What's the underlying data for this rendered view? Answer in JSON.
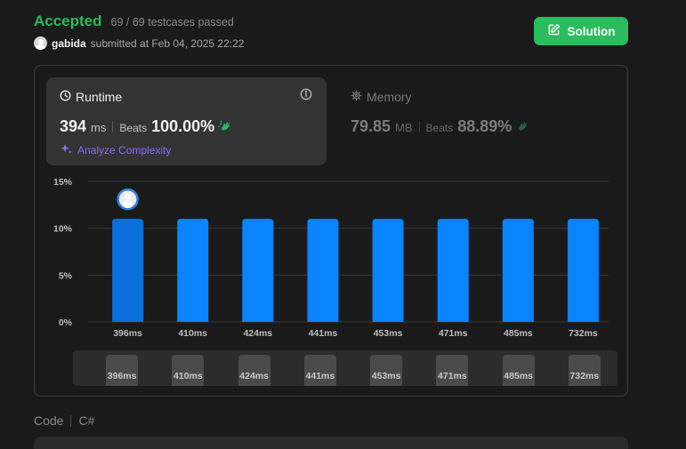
{
  "submission": {
    "status": "Accepted",
    "testcases": "69 / 69 testcases passed",
    "username": "gabida",
    "submitted_text": "submitted at Feb 04, 2025 22:22"
  },
  "solution_button": {
    "label": "Solution",
    "icon": "edit-icon"
  },
  "runtime": {
    "title": "Runtime",
    "value": "394",
    "unit": "ms",
    "beats_label": "Beats",
    "beats_value": "100.00%",
    "analyze_label": "Analyze Complexity"
  },
  "memory": {
    "title": "Memory",
    "value": "79.85",
    "unit": "MB",
    "beats_label": "Beats",
    "beats_value": "88.89%"
  },
  "colors": {
    "accent_green": "#2cbb5d",
    "bar_blue": "#0a84ff",
    "bar_selected": "#0a6fdb",
    "purple": "#8c6bff",
    "clap_green": "#2cbb5d"
  },
  "chart_data": {
    "type": "bar",
    "categories": [
      "396ms",
      "410ms",
      "424ms",
      "441ms",
      "453ms",
      "471ms",
      "485ms",
      "732ms"
    ],
    "values": [
      11,
      11,
      11,
      11,
      11,
      11,
      11,
      11
    ],
    "y_ticks": [
      "15%",
      "10%",
      "5%",
      "0%"
    ],
    "ylim": [
      0,
      15
    ],
    "grid": true,
    "highlight_index": 0
  },
  "code": {
    "label": "Code",
    "language": "C#"
  }
}
